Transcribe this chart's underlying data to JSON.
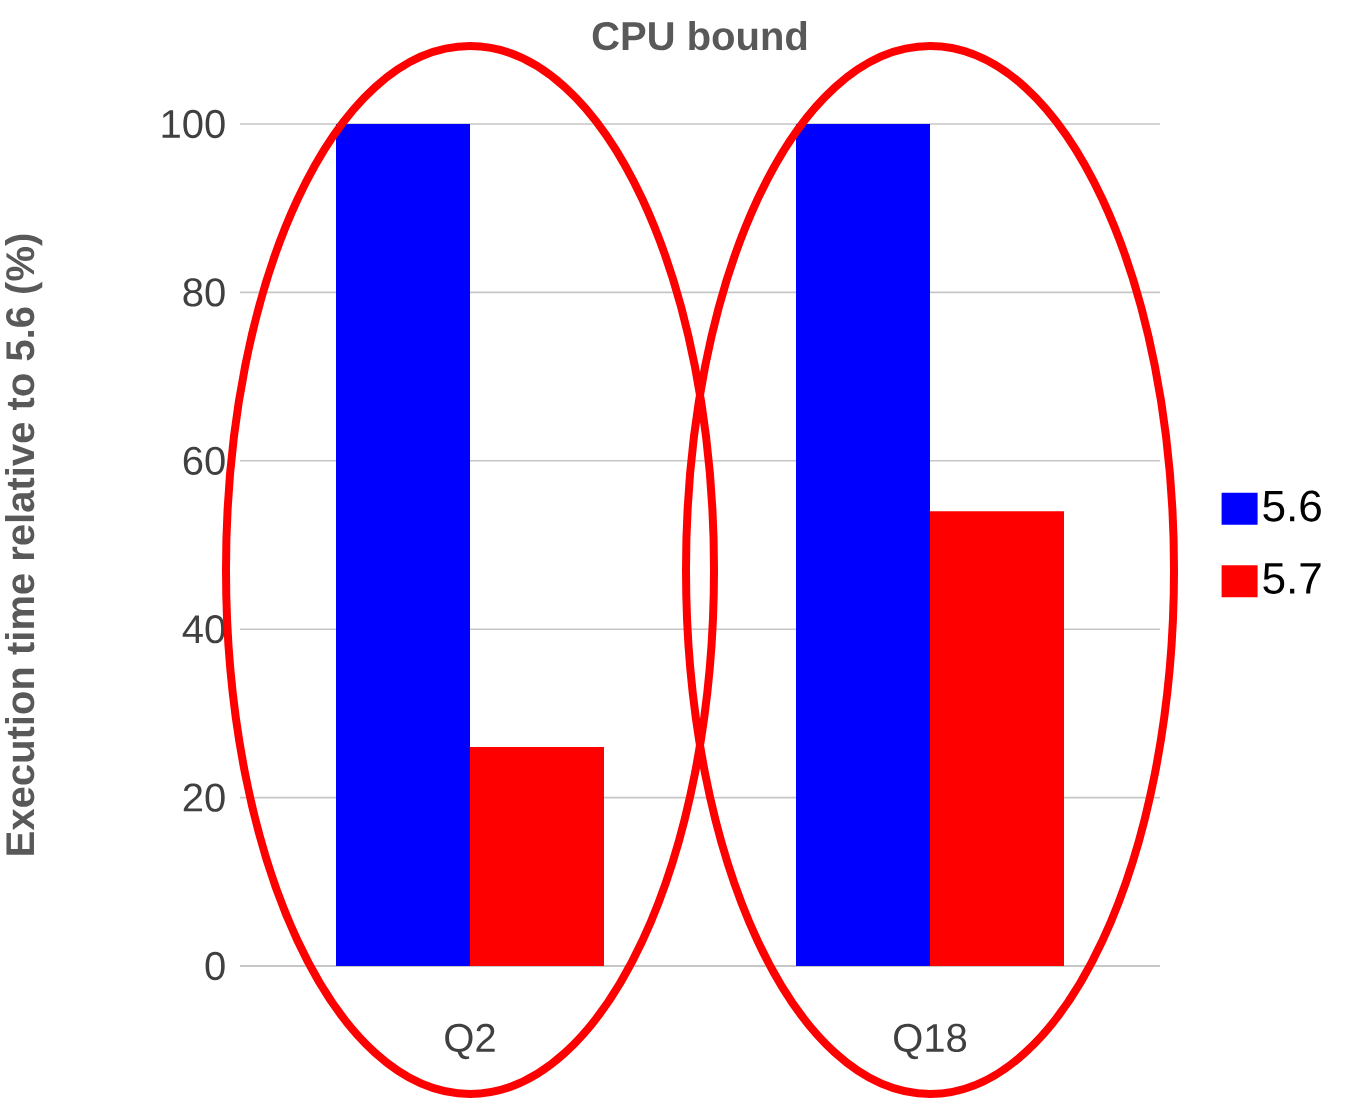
{
  "chart_data": {
    "type": "bar",
    "title": "CPU bound",
    "ylabel": "Execution time relative to 5.6 (%)",
    "categories": [
      "Q2",
      "Q18"
    ],
    "series": [
      {
        "name": "5.6",
        "color": "#0000ff",
        "values": [
          100,
          100
        ]
      },
      {
        "name": "5.7",
        "color": "#ff0000",
        "values": [
          26,
          54
        ]
      }
    ],
    "ylim": [
      0,
      100
    ],
    "yticks": [
      0,
      20,
      40,
      60,
      80,
      100
    ],
    "grid": "y",
    "legend": "right"
  }
}
